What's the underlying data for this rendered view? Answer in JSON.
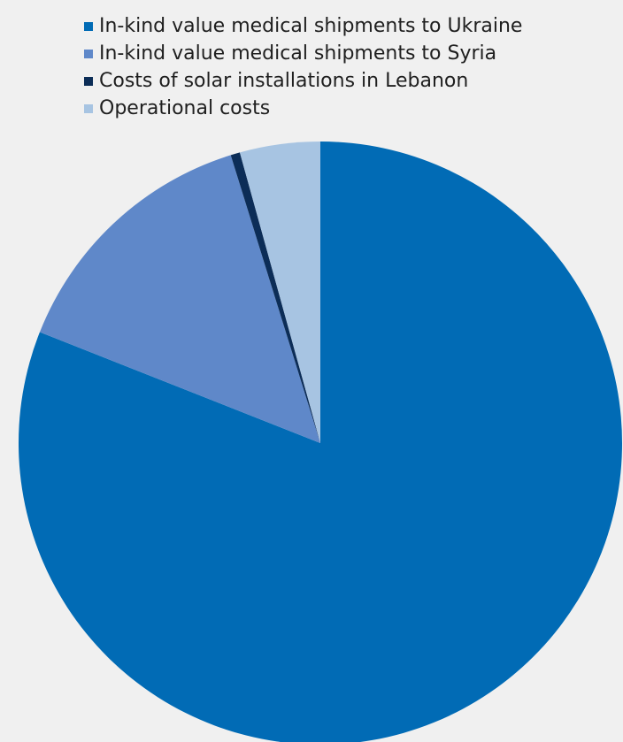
{
  "chart_data": {
    "type": "pie",
    "title": "",
    "legend_placement": "top",
    "slices": [
      {
        "label": "In-kind value medical shipments to Ukraine",
        "value": 81.0,
        "color": "#016bb5"
      },
      {
        "label": "In-kind value medical shipments to Syria",
        "value": 14.2,
        "color": "#5f88c9"
      },
      {
        "label": "Costs of solar installations in Lebanon",
        "value": 0.5,
        "color": "#0c2d57"
      },
      {
        "label": "Operational costs",
        "value": 4.3,
        "color": "#a7c4e2"
      }
    ]
  }
}
